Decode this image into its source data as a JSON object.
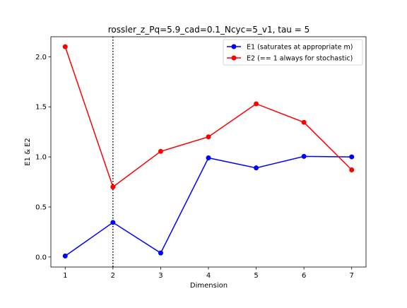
{
  "chart_data": {
    "type": "line",
    "title": "rossler_z_Pq=5.9_cad=0.1_Ncyc=5_v1, tau = 5",
    "xlabel": "Dimension",
    "ylabel": "E1 & E2",
    "xlim": [
      0.7,
      7.3
    ],
    "ylim": [
      -0.1,
      2.2
    ],
    "x_ticks": [
      "1",
      "2",
      "3",
      "4",
      "5",
      "6",
      "7"
    ],
    "y_ticks": [
      "0.0",
      "0.5",
      "1.0",
      "1.5",
      "2.0"
    ],
    "x": [
      1,
      2,
      3,
      4,
      5,
      6,
      7
    ],
    "series": [
      {
        "name": "E1 (saturates at appropriate m)",
        "color": "#0000ff",
        "values": [
          0.01,
          0.345,
          0.04,
          0.99,
          0.89,
          1.005,
          1.0
        ]
      },
      {
        "name": "E2 (== 1 always for stochastic)",
        "color": "#ff0000",
        "values": [
          2.1,
          0.7,
          1.055,
          1.2,
          1.53,
          1.345,
          0.87
        ]
      }
    ],
    "vline": {
      "x": 2,
      "style": "dotted",
      "color": "#000000"
    },
    "grid": false,
    "legend_position": "upper right"
  }
}
